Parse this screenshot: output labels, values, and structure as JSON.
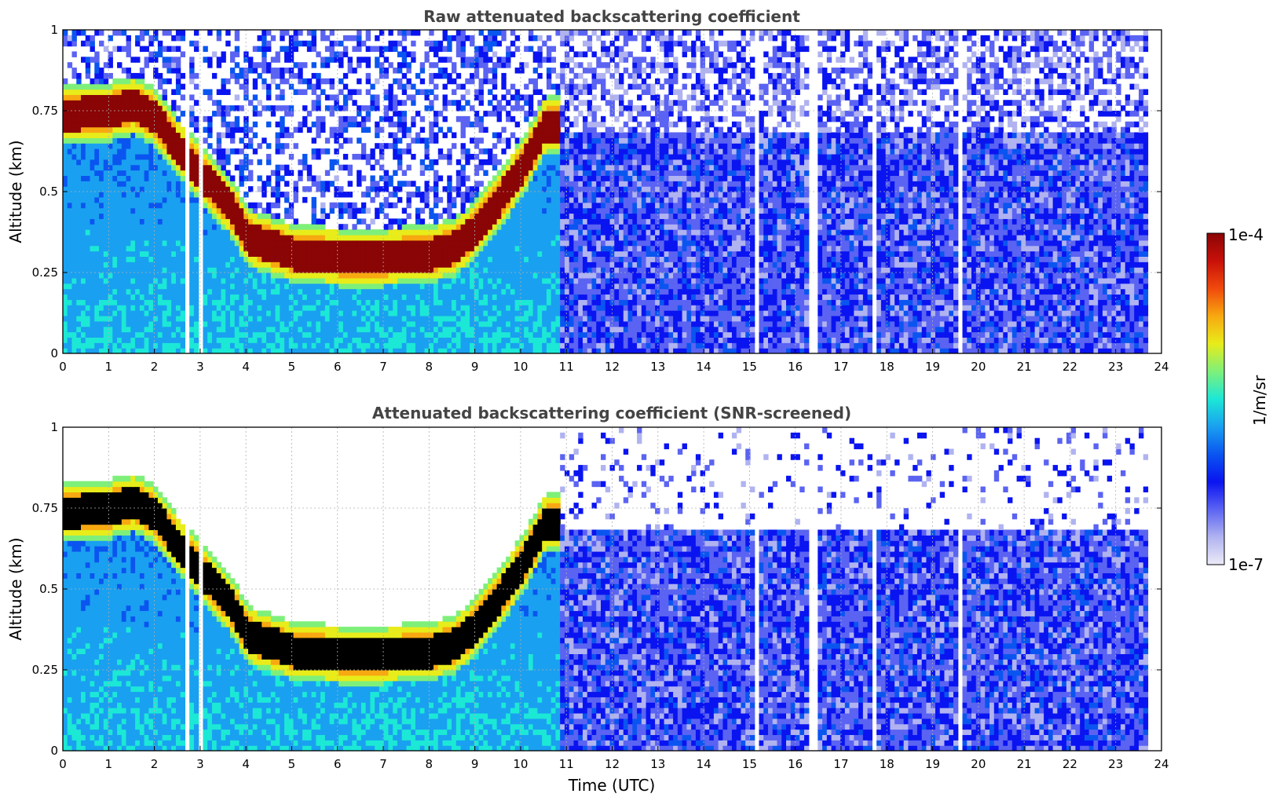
{
  "chart_data": [
    {
      "type": "heatmap",
      "title": "Raw attenuated backscattering coefficient",
      "xlabel": "",
      "ylabel": "Altitude (km)",
      "xlim": [
        0,
        24
      ],
      "ylim": [
        0,
        1
      ],
      "xticks": [
        "0",
        "1",
        "2",
        "3",
        "4",
        "5",
        "6",
        "7",
        "8",
        "9",
        "10",
        "11",
        "12",
        "13",
        "14",
        "15",
        "16",
        "17",
        "18",
        "19",
        "20",
        "21",
        "22",
        "23",
        "24"
      ],
      "yticks": [
        "0",
        "0.25",
        "0.5",
        "0.75",
        "1"
      ],
      "grid": true,
      "data_end_hour": 23.7,
      "cloud_layer": {
        "description_hours": [
          0,
          1,
          1.5,
          2,
          2.5,
          3.6,
          4,
          5,
          6,
          7,
          8,
          8.5,
          9,
          9.5,
          10,
          10.5
        ],
        "center_altitude_km": [
          0.73,
          0.74,
          0.76,
          0.72,
          0.62,
          0.45,
          0.35,
          0.3,
          0.29,
          0.29,
          0.3,
          0.32,
          0.38,
          0.47,
          0.57,
          0.7
        ]
      },
      "missing_data_hours": [
        2.65,
        2.97,
        15.1,
        16.35,
        17.7,
        19.55
      ]
    },
    {
      "type": "heatmap",
      "title": "Attenuated backscattering coefficient (SNR-screened)",
      "xlabel": "Time (UTC)",
      "ylabel": "Altitude (km)",
      "xlim": [
        0,
        24
      ],
      "ylim": [
        0,
        1
      ],
      "xticks": [
        "0",
        "1",
        "2",
        "3",
        "4",
        "5",
        "6",
        "7",
        "8",
        "9",
        "10",
        "11",
        "12",
        "13",
        "14",
        "15",
        "16",
        "17",
        "18",
        "19",
        "20",
        "21",
        "22",
        "23",
        "24"
      ],
      "yticks": [
        "0",
        "0.25",
        "0.5",
        "0.75",
        "1"
      ],
      "grid": true
    }
  ],
  "colorbar": {
    "label": "1/m/sr",
    "max_label": "1e-4",
    "min_label": "1e-7",
    "scale": "log",
    "colors": [
      "#ecebf8",
      "#b0b3f0",
      "#5b63f2",
      "#0a14f0",
      "#0a55f0",
      "#1aa0f0",
      "#1ce8d6",
      "#7ef07a",
      "#e8ec1a",
      "#f8a810",
      "#f04a0c",
      "#c8100a",
      "#8a0505"
    ]
  }
}
